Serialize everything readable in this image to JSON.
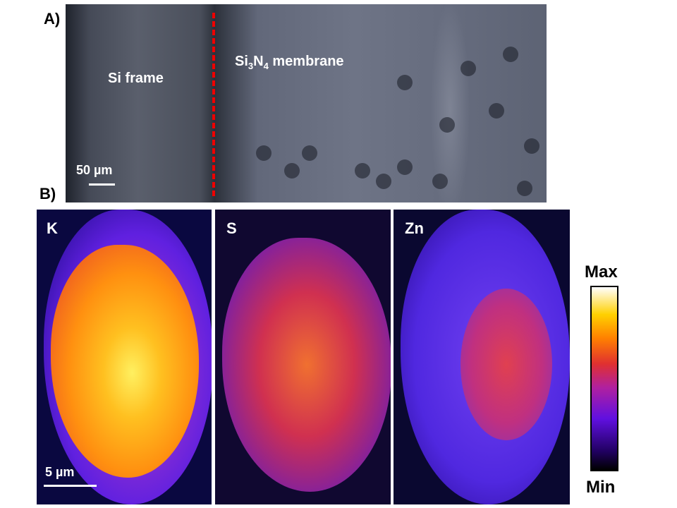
{
  "panel_a": {
    "label": "A)",
    "region_left": "Si frame",
    "region_right_base1": "Si",
    "region_right_sub1": "3",
    "region_right_base2": "N",
    "region_right_sub2": "4",
    "region_right_rest": " membrane",
    "scale_bar": "50 µm"
  },
  "panel_b": {
    "label": "B)",
    "maps": [
      {
        "element": "K"
      },
      {
        "element": "S"
      },
      {
        "element": "Zn"
      }
    ],
    "scale_bar": "5 µm"
  },
  "colorbar": {
    "max_label": "Max",
    "min_label": "Min",
    "colormap": "fire"
  },
  "colors": {
    "boundary_line": "#e00000"
  }
}
